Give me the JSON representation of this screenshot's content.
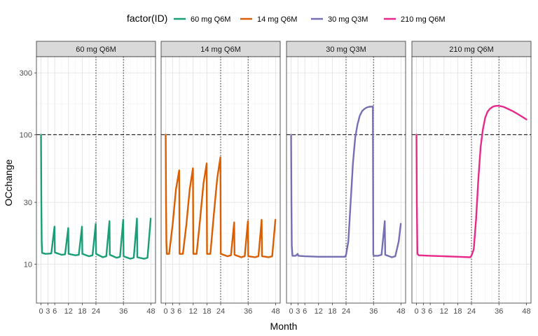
{
  "chart_data": {
    "type": "line",
    "legend": {
      "title": "factor(ID)",
      "position": "top"
    },
    "xlabel": "Month",
    "ylabel": "OCchange",
    "yscale": "log",
    "xlim": [
      -2,
      50
    ],
    "ylim": [
      5,
      400
    ],
    "x_ticks": [
      0,
      3,
      6,
      12,
      18,
      24,
      36,
      48
    ],
    "x_tick_labels": [
      "0",
      "3",
      "6",
      "12",
      "18",
      "24",
      "36",
      "48"
    ],
    "y_ticks": [
      10,
      30,
      100,
      300
    ],
    "y_tick_labels": [
      "10",
      "30",
      "100",
      "300"
    ],
    "y_minor": [
      17.32,
      54.77,
      173.2
    ],
    "grid": true,
    "reference_lines": {
      "hline": 100,
      "vlines": [
        24,
        36
      ]
    },
    "panels": [
      {
        "strip": "60 mg Q6M",
        "color": "#1b9e77",
        "series": [
          [
            0,
            100
          ],
          [
            0.15,
            30
          ],
          [
            0.3,
            15
          ],
          [
            0.5,
            12.2
          ],
          [
            2,
            12
          ],
          [
            4.5,
            12.1
          ],
          [
            5.9,
            19.5
          ],
          [
            6.05,
            12.3
          ],
          [
            9,
            11.8
          ],
          [
            10.5,
            11.9
          ],
          [
            11.9,
            19
          ],
          [
            12.05,
            12
          ],
          [
            15,
            11.7
          ],
          [
            16.5,
            11.8
          ],
          [
            17.9,
            19.5
          ],
          [
            18.05,
            12
          ],
          [
            21,
            11.5
          ],
          [
            22.5,
            11.7
          ],
          [
            23.9,
            20.5
          ],
          [
            24.05,
            12
          ],
          [
            27,
            11.3
          ],
          [
            28.5,
            11.5
          ],
          [
            29.9,
            21.5
          ],
          [
            30.05,
            11.8
          ],
          [
            33,
            11.2
          ],
          [
            34.5,
            11.4
          ],
          [
            35.9,
            22
          ],
          [
            36.05,
            11.5
          ],
          [
            39,
            11
          ],
          [
            40.5,
            11.2
          ],
          [
            41.9,
            22.5
          ],
          [
            42.05,
            11.3
          ],
          [
            45,
            11
          ],
          [
            46.5,
            11.2
          ],
          [
            47.9,
            22.5
          ]
        ]
      },
      {
        "strip": "14 mg Q6M",
        "color": "#d95f02",
        "series": [
          [
            0,
            100
          ],
          [
            0.15,
            30
          ],
          [
            0.3,
            15
          ],
          [
            0.5,
            12
          ],
          [
            1.5,
            12
          ],
          [
            3,
            20
          ],
          [
            4.5,
            38
          ],
          [
            5.9,
            53
          ],
          [
            6.05,
            12
          ],
          [
            7.5,
            12
          ],
          [
            9,
            20
          ],
          [
            10.5,
            38
          ],
          [
            11.9,
            55
          ],
          [
            12.05,
            12
          ],
          [
            13.5,
            12
          ],
          [
            15,
            22
          ],
          [
            16.5,
            42
          ],
          [
            17.9,
            60
          ],
          [
            18.05,
            12
          ],
          [
            19.5,
            12
          ],
          [
            21,
            24
          ],
          [
            22.5,
            46
          ],
          [
            23.9,
            67
          ],
          [
            24.05,
            12
          ],
          [
            27,
            11.5
          ],
          [
            28.5,
            11.7
          ],
          [
            29.9,
            21
          ],
          [
            30.05,
            11.8
          ],
          [
            33,
            11.3
          ],
          [
            34.5,
            11.5
          ],
          [
            35.9,
            21.5
          ],
          [
            36.05,
            11.5
          ],
          [
            39,
            11.3
          ],
          [
            40.5,
            11.5
          ],
          [
            41.9,
            22
          ],
          [
            42.05,
            11.5
          ],
          [
            45,
            11.3
          ],
          [
            46.5,
            11.5
          ],
          [
            47.9,
            22
          ]
        ]
      },
      {
        "strip": "30 mg Q3M",
        "color": "#7570b3",
        "series": [
          [
            0,
            100
          ],
          [
            0.15,
            30
          ],
          [
            0.3,
            14
          ],
          [
            0.6,
            11.6
          ],
          [
            2,
            11.6
          ],
          [
            2.9,
            12
          ],
          [
            3.1,
            11.6
          ],
          [
            6,
            11.5
          ],
          [
            12,
            11.4
          ],
          [
            18,
            11.4
          ],
          [
            23.5,
            11.4
          ],
          [
            24,
            11.8
          ],
          [
            25,
            15
          ],
          [
            26,
            30
          ],
          [
            27,
            60
          ],
          [
            28,
            95
          ],
          [
            29,
            120
          ],
          [
            30,
            140
          ],
          [
            31,
            152
          ],
          [
            32,
            158
          ],
          [
            33,
            162
          ],
          [
            34,
            164
          ],
          [
            35.7,
            165
          ],
          [
            35.9,
            11.8
          ],
          [
            36.2,
            11.6
          ],
          [
            38,
            11.6
          ],
          [
            39.5,
            11.8
          ],
          [
            40.9,
            21.5
          ],
          [
            41.1,
            11.8
          ],
          [
            44,
            11.3
          ],
          [
            45.5,
            11.5
          ],
          [
            47,
            15
          ],
          [
            47.9,
            20.5
          ]
        ]
      },
      {
        "strip": "210 mg Q6M",
        "color": "#e7298a",
        "series": [
          [
            0,
            100
          ],
          [
            0.15,
            30
          ],
          [
            0.4,
            12
          ],
          [
            1,
            11.7
          ],
          [
            6,
            11.6
          ],
          [
            12,
            11.5
          ],
          [
            18,
            11.4
          ],
          [
            23.5,
            11.3
          ],
          [
            24,
            11.6
          ],
          [
            25,
            13
          ],
          [
            26,
            22
          ],
          [
            27,
            45
          ],
          [
            28,
            80
          ],
          [
            29,
            110
          ],
          [
            30,
            135
          ],
          [
            31,
            150
          ],
          [
            32,
            158
          ],
          [
            33,
            163
          ],
          [
            34,
            166
          ],
          [
            35,
            167
          ],
          [
            36,
            167
          ],
          [
            38,
            164
          ],
          [
            40,
            158
          ],
          [
            42,
            152
          ],
          [
            44,
            145
          ],
          [
            46,
            138
          ],
          [
            48,
            131
          ]
        ]
      }
    ]
  }
}
